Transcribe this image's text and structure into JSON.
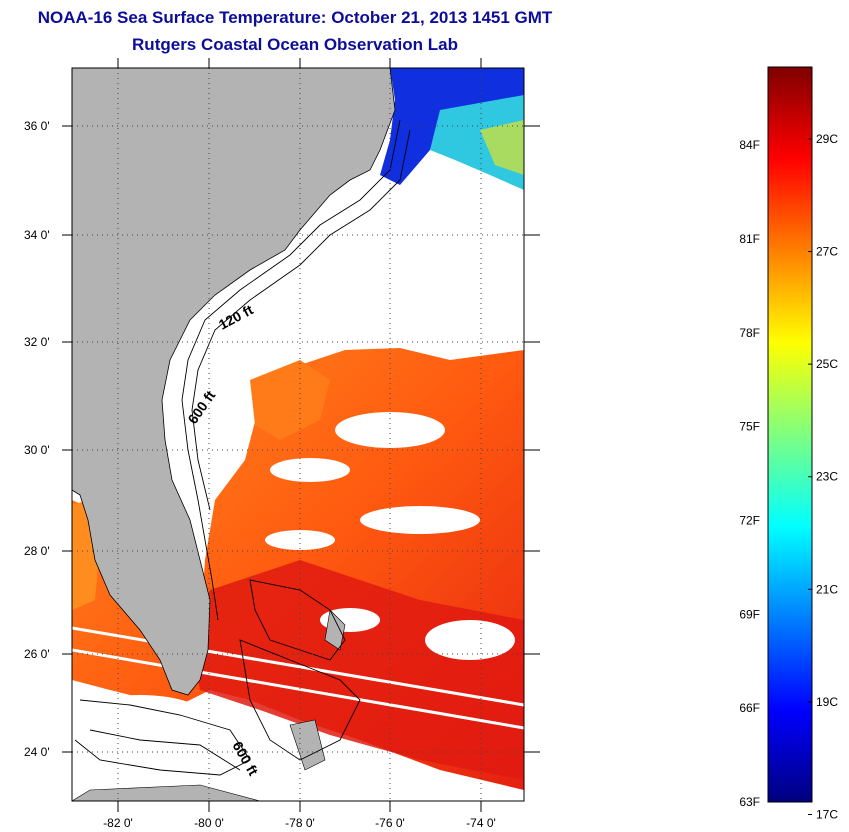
{
  "title": "NOAA-16 Sea Surface Temperature:  October 21, 2013 1451 GMT",
  "subtitle": "Rutgers Coastal Ocean Observation Lab",
  "map": {
    "lon_range": [
      -83,
      -73
    ],
    "lat_range": [
      23,
      37
    ],
    "lon_ticks": [
      -82,
      -80,
      -78,
      -76,
      -74
    ],
    "lon_tick_labels": [
      "-82 0'",
      "-80 0'",
      "-78 0'",
      "-76 0'",
      "-74 0'"
    ],
    "lat_ticks": [
      24,
      26,
      28,
      30,
      32,
      34,
      36
    ],
    "lat_tick_labels": [
      "24 0'",
      "26 0'",
      "28 0'",
      "30 0'",
      "32 0'",
      "34 0'",
      "36 0'"
    ],
    "grid": true,
    "land_color": "#b3b3b3",
    "cloud_color": "#ffffff",
    "contour_labels": [
      "120 ft",
      "600 ft",
      "600 ft"
    ]
  },
  "colorbar": {
    "fahrenheit_labels": [
      "84F",
      "81F",
      "78F",
      "75F",
      "72F",
      "69F",
      "66F",
      "63F"
    ],
    "fahrenheit_values": [
      84,
      81,
      78,
      75,
      72,
      69,
      66,
      63
    ],
    "celsius_labels": [
      "29C",
      "27C",
      "25C",
      "23C",
      "21C",
      "19C",
      "17C"
    ],
    "celsius_values": [
      29,
      27,
      25,
      23,
      21,
      19,
      17
    ],
    "range_f": [
      63,
      86.5
    ],
    "colors": [
      "#00007f",
      "#0000ff",
      "#007fff",
      "#00ffff",
      "#7fff7f",
      "#ffff00",
      "#ff7f00",
      "#ff0000",
      "#7f0000"
    ]
  }
}
